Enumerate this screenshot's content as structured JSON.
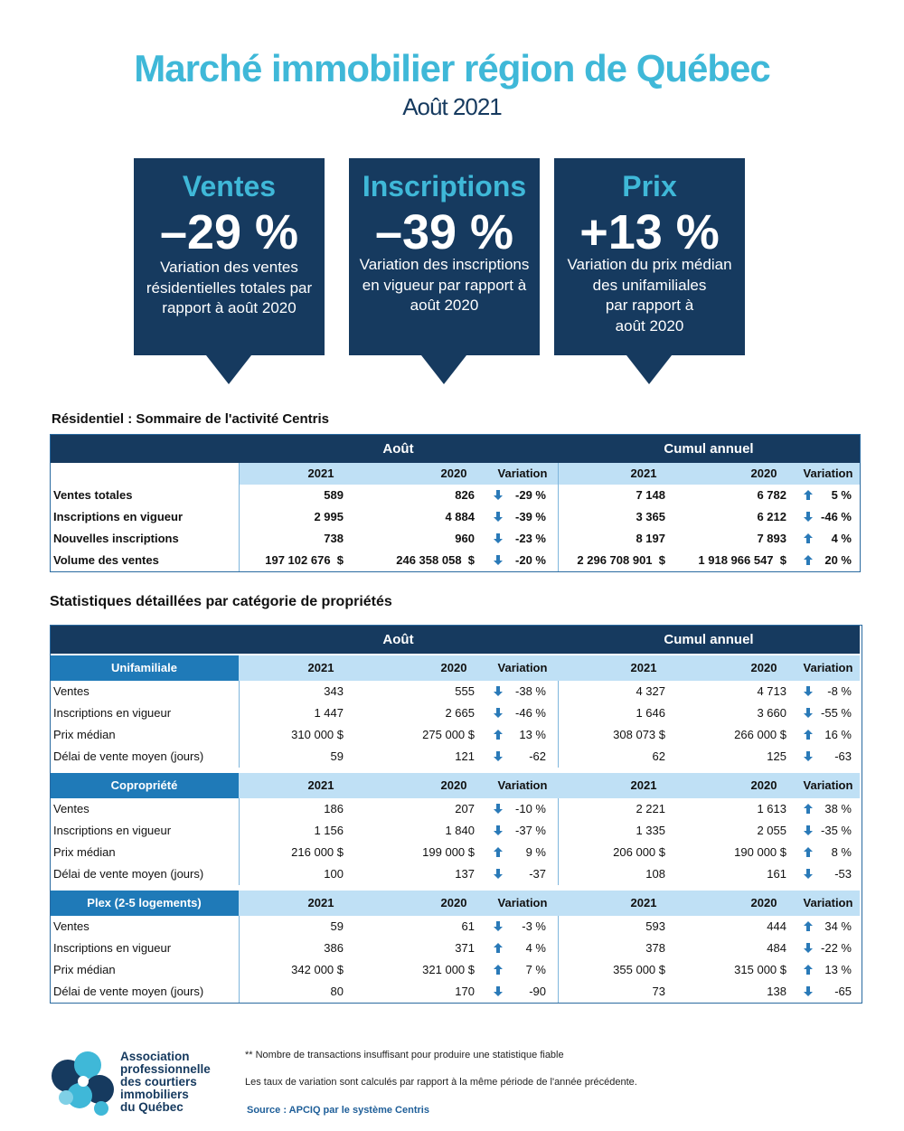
{
  "header": {
    "title": "Marché immobilier région de Québec",
    "subtitle": "Août 2021"
  },
  "cards": [
    {
      "heading": "Ventes",
      "figure": "–29 %",
      "lines": [
        "Variation des ventes",
        "résidentielles totales par",
        "rapport à août 2020"
      ]
    },
    {
      "heading": "Inscriptions",
      "figure": "–39 %",
      "lines": [
        "Variation des inscriptions",
        "en vigueur par rapport à",
        "août 2020"
      ]
    },
    {
      "heading": "Prix",
      "figure": "+13 %",
      "lines": [
        "Variation du prix médian",
        "des unifamiliales",
        "par rapport à",
        "août 2020"
      ]
    }
  ],
  "summary": {
    "title": "Résidentiel : Sommaire de l'activité Centris",
    "groups": [
      "Août",
      "Cumul annuel"
    ],
    "col_headers": [
      "2021",
      "2020",
      "Variation",
      "2021",
      "2020",
      "Variation"
    ],
    "rows": [
      [
        "Ventes totales",
        "589",
        "826",
        "-29 %",
        "7 148",
        "6 782",
        "5 %"
      ],
      [
        "Inscriptions en vigueur",
        "2 995",
        "4 884",
        "-39 %",
        "3 365",
        "6 212",
        "-46 %"
      ],
      [
        "Nouvelles inscriptions",
        "738",
        "960",
        "-23 %",
        "8 197",
        "7 893",
        "4 %"
      ],
      [
        "Volume des ventes",
        "197 102 676  $",
        "246 358 058  $",
        "-20 %",
        "2 296 708 901  $",
        "1 918 966 547  $",
        "20 %"
      ]
    ]
  },
  "details": {
    "title": "Statistiques détaillées par catégorie de propriétés",
    "groups": [
      "Août",
      "Cumul annuel"
    ],
    "sections": [
      {
        "name": "Unifamiliale",
        "col_headers": [
          "2021",
          "2020",
          "Variation",
          "2021",
          "2020",
          "Variation"
        ],
        "rows": [
          [
            "Ventes",
            "343",
            "555",
            "-38 %",
            "4 327",
            "4 713",
            "-8 %"
          ],
          [
            "Inscriptions en vigueur",
            "1 447",
            "2 665",
            "-46 %",
            "1 646",
            "3 660",
            "-55 %"
          ],
          [
            "Prix médian",
            "310 000 $",
            "275 000 $",
            "13 %",
            "308 073 $",
            "266 000 $",
            "16 %"
          ],
          [
            "Délai de vente moyen (jours)",
            "59",
            "121",
            "-62",
            "62",
            "125",
            "-63"
          ]
        ]
      },
      {
        "name": "Copropriété",
        "col_headers": [
          "2021",
          "2020",
          "Variation",
          "2021",
          "2020",
          "Variation"
        ],
        "rows": [
          [
            "Ventes",
            "186",
            "207",
            "-10 %",
            "2 221",
            "1 613",
            "38 %"
          ],
          [
            "Inscriptions en vigueur",
            "1 156",
            "1 840",
            "-37 %",
            "1 335",
            "2 055",
            "-35 %"
          ],
          [
            "Prix médian",
            "216 000 $",
            "199 000 $",
            "9 %",
            "206 000 $",
            "190 000 $",
            "8 %"
          ],
          [
            "Délai de vente moyen (jours)",
            "100",
            "137",
            "-37",
            "108",
            "161",
            "-53"
          ]
        ]
      },
      {
        "name": "Plex (2-5 logements)",
        "col_headers": [
          "2021",
          "2020",
          "Variation",
          "2021",
          "2020",
          "Variation"
        ],
        "rows": [
          [
            "Ventes",
            "59",
            "61",
            "-3 %",
            "593",
            "444",
            "34 %"
          ],
          [
            "Inscriptions en vigueur",
            "386",
            "371",
            "4 %",
            "378",
            "484",
            "-22 %"
          ],
          [
            "Prix médian",
            "342 000 $",
            "321 000 $",
            "7 %",
            "355 000 $",
            "315 000 $",
            "13 %"
          ],
          [
            "Délai de vente moyen (jours)",
            "80",
            "170",
            "-90",
            "73",
            "138",
            "-65"
          ]
        ]
      }
    ]
  },
  "footer": {
    "logo": [
      "Association",
      "professionnelle",
      "des courtiers",
      "immobiliers",
      "du Québec"
    ],
    "notes": [
      "** Nombre de transactions insuffisant pour produire une statistique fiable",
      "Les taux de variation sont calculés par rapport à la même période de l'année précédente."
    ],
    "source": "Source : APCIQ par le système Centris"
  }
}
